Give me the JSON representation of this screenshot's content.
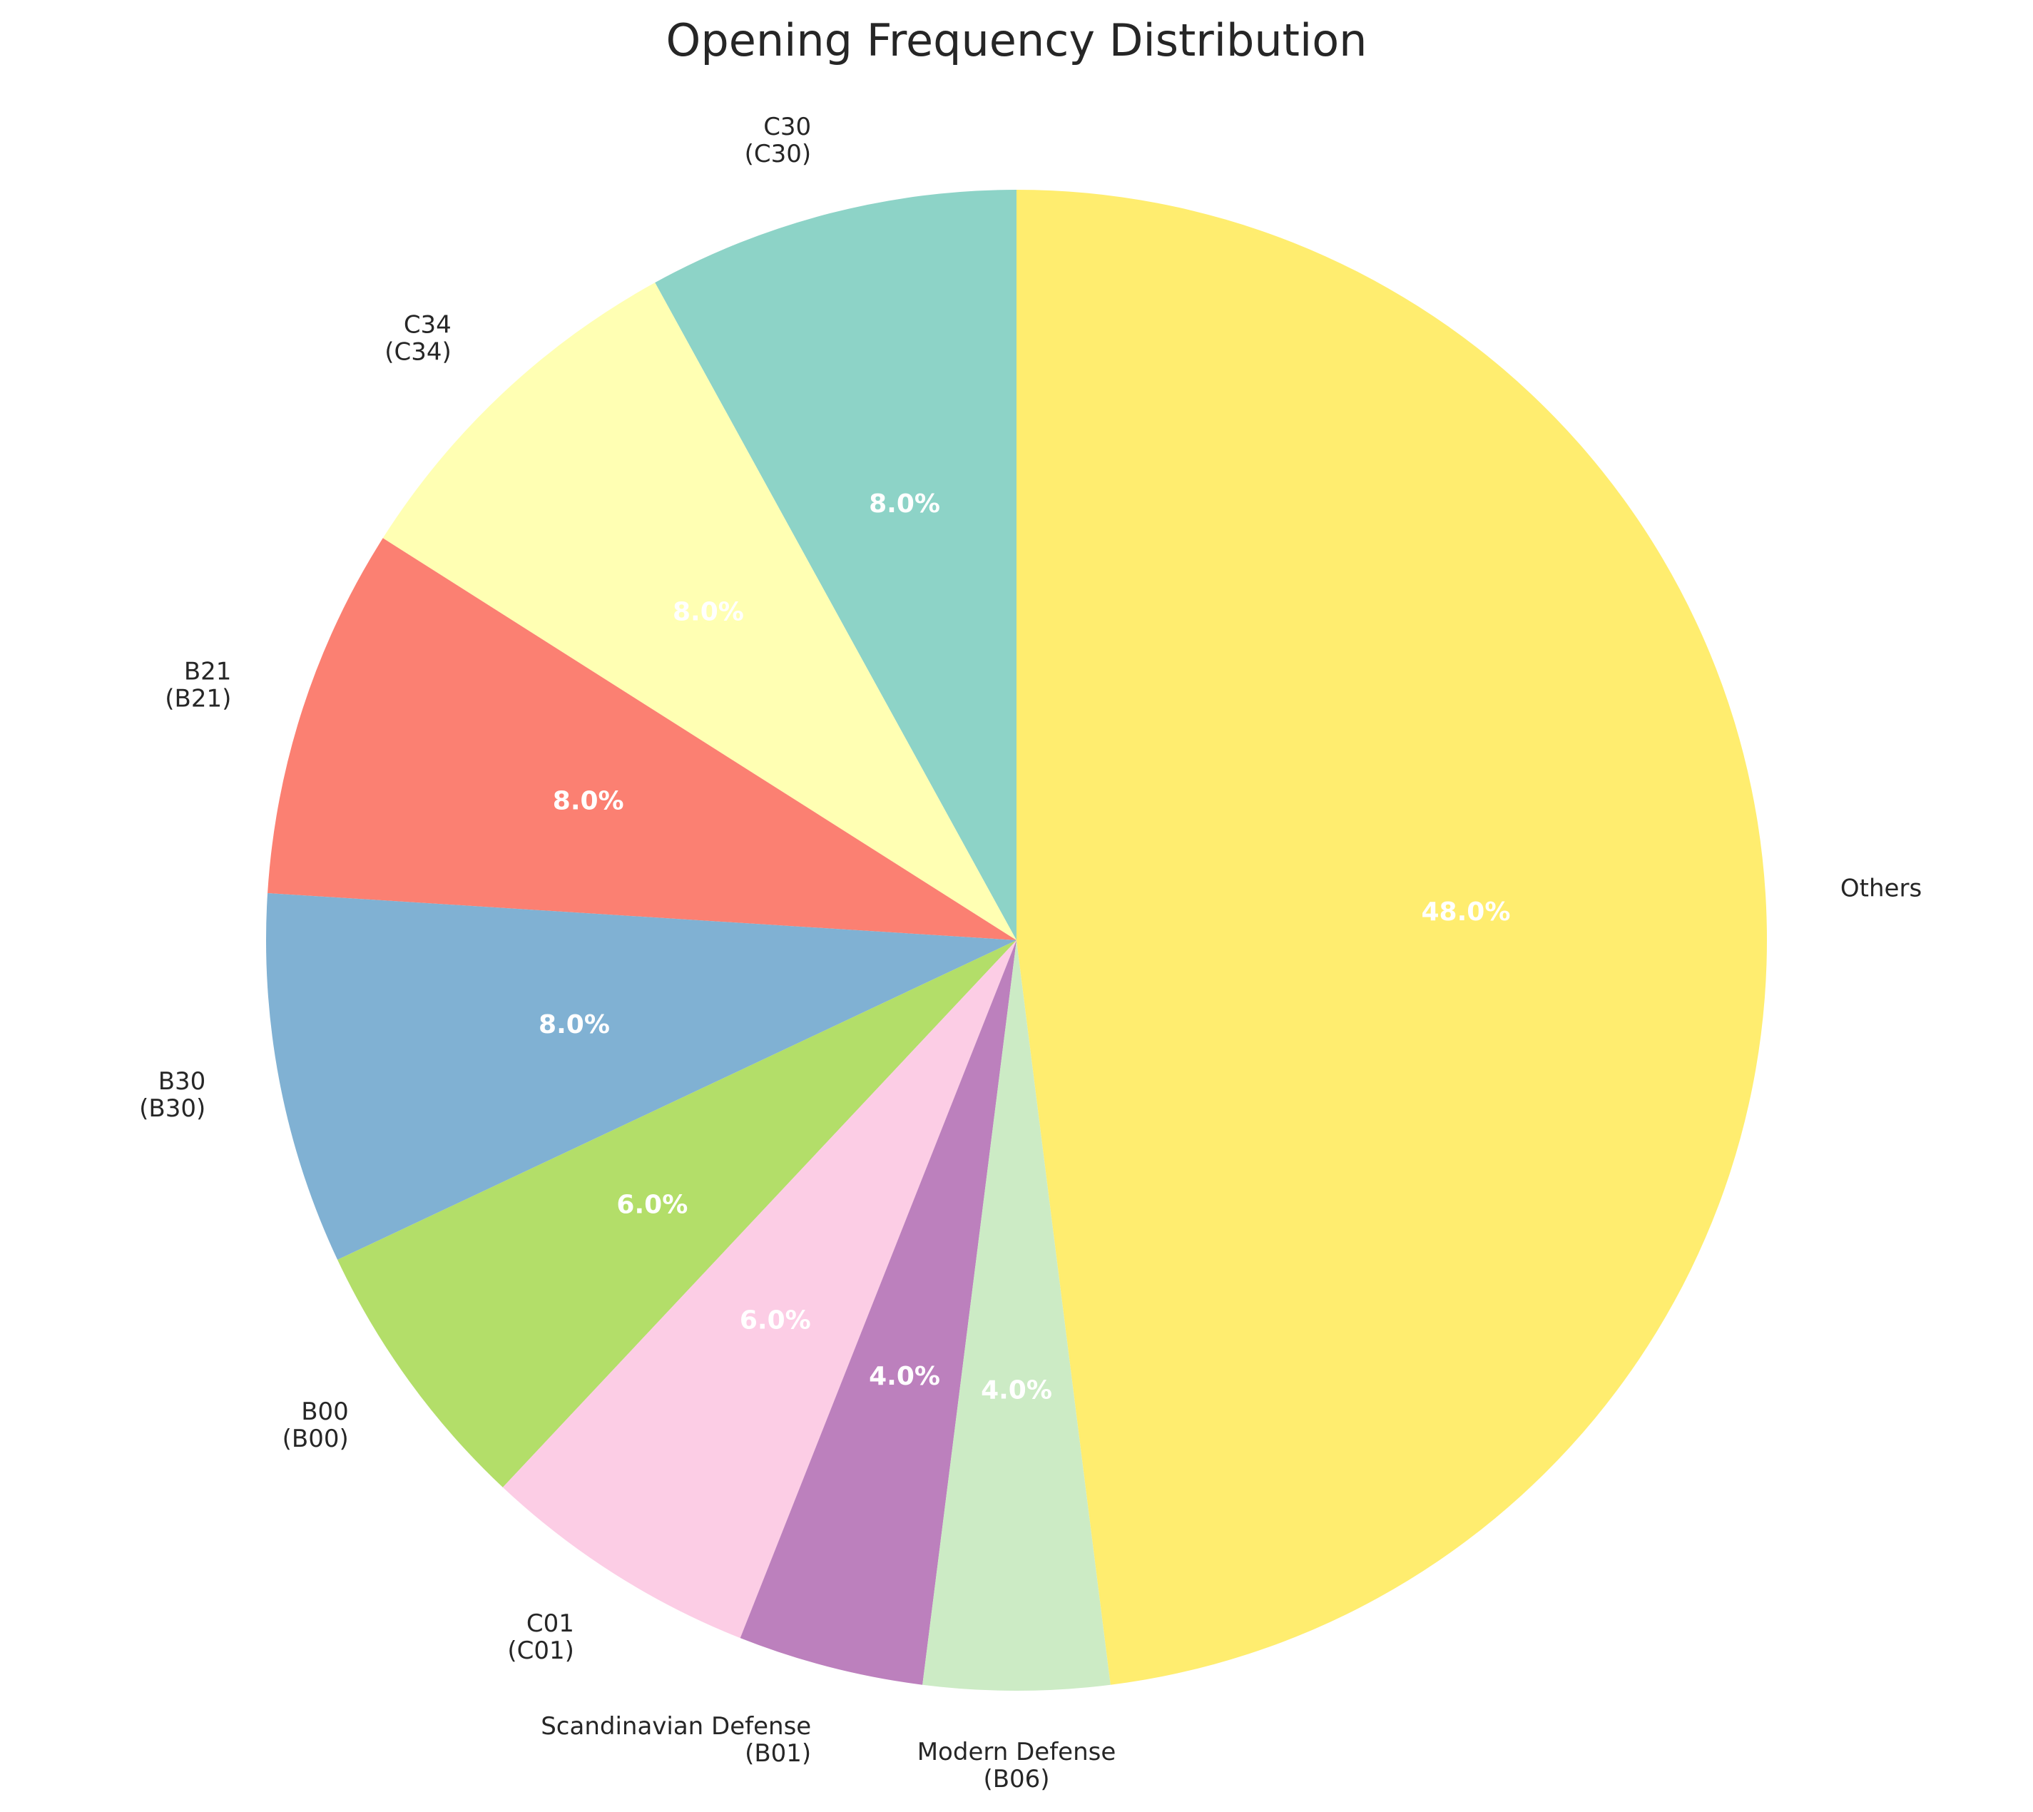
{
  "chart_data": {
    "type": "pie",
    "title": "Opening Frequency Distribution",
    "start_angle": 90,
    "direction": "counterclockwise",
    "slices": [
      {
        "name": "C30",
        "code": "(C30)",
        "value": 8.0,
        "pct_label": "8.0%",
        "color": "#8dd3c7"
      },
      {
        "name": "C34",
        "code": "(C34)",
        "value": 8.0,
        "pct_label": "8.0%",
        "color": "#ffffb3"
      },
      {
        "name": "B21",
        "code": "(B21)",
        "value": 8.0,
        "pct_label": "8.0%",
        "color": "#fb8072"
      },
      {
        "name": "B30",
        "code": "(B30)",
        "value": 8.0,
        "pct_label": "8.0%",
        "color": "#80b1d3"
      },
      {
        "name": "B00",
        "code": "(B00)",
        "value": 6.0,
        "pct_label": "6.0%",
        "color": "#b3de69"
      },
      {
        "name": "C01",
        "code": "(C01)",
        "value": 6.0,
        "pct_label": "6.0%",
        "color": "#fccde5"
      },
      {
        "name": "Scandinavian Defense",
        "code": "(B01)",
        "value": 4.0,
        "pct_label": "4.0%",
        "color": "#bc80bd"
      },
      {
        "name": "Modern Defense",
        "code": "(B06)",
        "value": 4.0,
        "pct_label": "4.0%",
        "color": "#ccebc5"
      },
      {
        "name": "Others",
        "code": "",
        "value": 48.0,
        "pct_label": "48.0%",
        "color": "#ffed6f"
      }
    ]
  }
}
